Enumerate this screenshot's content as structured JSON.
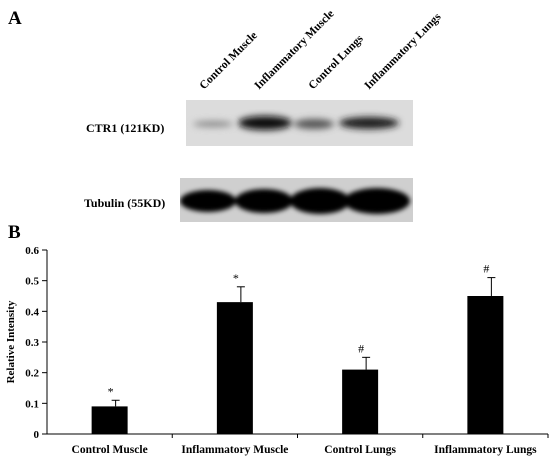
{
  "panel_a": {
    "letter": "A",
    "lanes": [
      "Control Muscle",
      "Inflammatory Muscle",
      "Control Lungs",
      "Inflammatory Lungs"
    ],
    "blots": [
      {
        "label": "CTR1 (121KD)",
        "background": "#dcdcdc"
      },
      {
        "label": "Tubulin (55KD)",
        "background": "#cfcfcf"
      }
    ]
  },
  "panel_b": {
    "letter": "B"
  },
  "chart_data": {
    "type": "bar",
    "categories": [
      "Control  Muscle",
      "Inflammatory Muscle",
      "Control Lungs",
      "Inflammatory Lungs"
    ],
    "values": [
      0.09,
      0.43,
      0.21,
      0.45
    ],
    "errors": [
      0.02,
      0.05,
      0.04,
      0.06
    ],
    "annotations": [
      "*",
      "*",
      "#",
      "#"
    ],
    "title": "",
    "xlabel": "",
    "ylabel": "Relative Intensity",
    "ylim": [
      0,
      0.6
    ],
    "yticks": [
      0,
      0.1,
      0.2,
      0.3,
      0.4,
      0.5,
      0.6
    ],
    "ytick_labels": [
      "0",
      "0.1",
      "0.2",
      "0.3",
      "0.4",
      "0.5",
      "0.6"
    ],
    "bar_color": "#000000",
    "grid": false
  }
}
